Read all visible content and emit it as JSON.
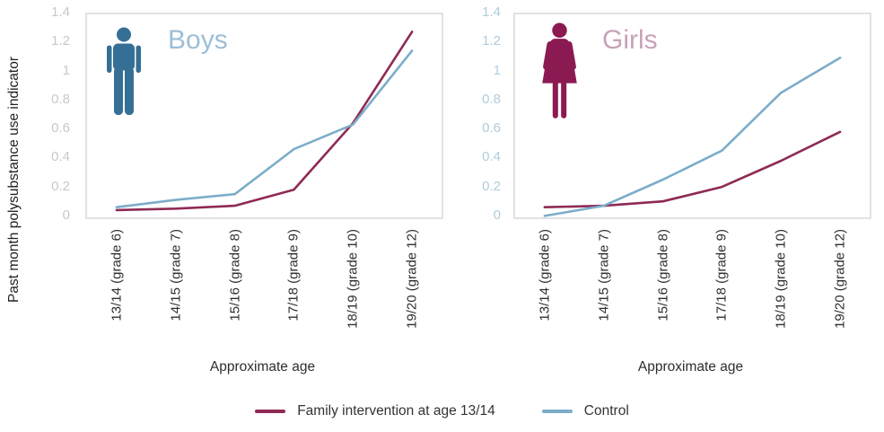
{
  "legend": [
    {
      "label": "Family intervention at age 13/14",
      "color": "#8e2a55"
    },
    {
      "label": "Control",
      "color": "#7cadc9"
    }
  ],
  "chart_data": [
    {
      "type": "line",
      "title": "Boys",
      "title_color": "#9dbed8",
      "icon": "male-icon",
      "icon_color": "#366f96",
      "tick_color": "#c8c8c8",
      "xlabel": "Approximate age",
      "ylabel": "Past month polysubstance use indicator",
      "ylim": [
        0,
        1.4
      ],
      "yticks": [
        "0",
        "0.2",
        "0.4",
        "0.6",
        "0.8",
        "1",
        "1.2",
        "1.4"
      ],
      "grid": false,
      "legend_position": "bottom",
      "categories": [
        "13/14 (grade 6)",
        "14/15 (grade 7)",
        "15/16 (grade 8)",
        "17/18 (grade 9)",
        "18/19 (grade 10)",
        "19/20 (grade 12)"
      ],
      "series": [
        {
          "name": "Family intervention at age 13/14",
          "color": "#8e2a55",
          "values": [
            0.05,
            0.06,
            0.08,
            0.19,
            0.65,
            1.28
          ]
        },
        {
          "name": "Control",
          "color": "#7cadc9",
          "values": [
            0.07,
            0.12,
            0.16,
            0.47,
            0.64,
            1.15
          ]
        }
      ]
    },
    {
      "type": "line",
      "title": "Girls",
      "title_color": "#c8a2b8",
      "icon": "female-icon",
      "icon_color": "#8c1a52",
      "tick_color": "#afccdc",
      "xlabel": "Approximate age",
      "ylabel": "",
      "ylim": [
        0,
        1.4
      ],
      "yticks": [
        "0",
        "0.2",
        "0.4",
        "0.6",
        "0.8",
        "1",
        "1.2",
        "1.4"
      ],
      "grid": false,
      "legend_position": "bottom",
      "categories": [
        "13/14 (grade 6)",
        "14/15 (grade 7)",
        "15/16 (grade 8)",
        "17/18 (grade 9)",
        "18/19 (grade 10)",
        "19/20 (grade 12)"
      ],
      "series": [
        {
          "name": "Family intervention at age 13/14",
          "color": "#8e2a55",
          "values": [
            0.07,
            0.08,
            0.11,
            0.21,
            0.39,
            0.59
          ]
        },
        {
          "name": "Control",
          "color": "#7cadc9",
          "values": [
            0.01,
            0.08,
            0.26,
            0.46,
            0.86,
            1.1
          ]
        }
      ]
    }
  ]
}
